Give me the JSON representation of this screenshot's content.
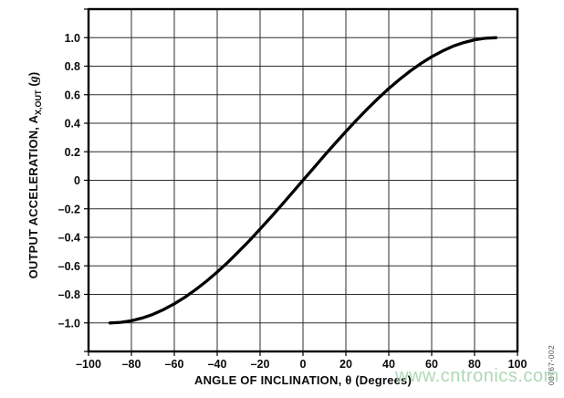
{
  "chart_data": {
    "type": "line",
    "title": "",
    "xlabel": "ANGLE OF INCLINATION, θ (Degrees)",
    "ylabel": "OUTPUT ACCELERATION, AX,OUT (g)",
    "ylabel_parts": {
      "prefix": "OUTPUT ACCELERATION, A",
      "sub": "X,OUT",
      "unit_open": " (",
      "unit_g": "g",
      "unit_close": ")"
    },
    "xlim": [
      -100,
      100
    ],
    "ylim": [
      -1.2,
      1.2
    ],
    "x_grid_step": 20,
    "y_grid_step": 0.2,
    "grid": true,
    "legend_position": "none",
    "x_ticks": [
      {
        "v": -100,
        "label": "–100"
      },
      {
        "v": -80,
        "label": "–80"
      },
      {
        "v": -60,
        "label": "–60"
      },
      {
        "v": -40,
        "label": "–40"
      },
      {
        "v": -20,
        "label": "–20"
      },
      {
        "v": 0,
        "label": "0"
      },
      {
        "v": 20,
        "label": "20"
      },
      {
        "v": 40,
        "label": "40"
      },
      {
        "v": 60,
        "label": "60"
      },
      {
        "v": 80,
        "label": "80"
      },
      {
        "v": 100,
        "label": "100"
      }
    ],
    "y_ticks": [
      {
        "v": 1.0,
        "label": "1.0"
      },
      {
        "v": 0.8,
        "label": "0.8"
      },
      {
        "v": 0.6,
        "label": "0.6"
      },
      {
        "v": 0.4,
        "label": "0.4"
      },
      {
        "v": 0.2,
        "label": "0.2"
      },
      {
        "v": 0,
        "label": "0"
      },
      {
        "v": -0.2,
        "label": "–0.2"
      },
      {
        "v": -0.4,
        "label": "–0.4"
      },
      {
        "v": -0.6,
        "label": "–0.6"
      },
      {
        "v": -0.8,
        "label": "–0.8"
      },
      {
        "v": -1.0,
        "label": "–1.0"
      }
    ],
    "series": [
      {
        "name": "output-acceleration-vs-angle",
        "x": [
          -90,
          -85,
          -80,
          -75,
          -70,
          -65,
          -60,
          -55,
          -50,
          -45,
          -40,
          -35,
          -30,
          -25,
          -20,
          -15,
          -10,
          -5,
          0,
          5,
          10,
          15,
          20,
          25,
          30,
          35,
          40,
          45,
          50,
          55,
          60,
          65,
          70,
          75,
          80,
          85,
          90
        ],
        "y": [
          -1.0,
          -0.996,
          -0.985,
          -0.966,
          -0.94,
          -0.906,
          -0.866,
          -0.819,
          -0.766,
          -0.707,
          -0.643,
          -0.574,
          -0.5,
          -0.423,
          -0.342,
          -0.259,
          -0.174,
          -0.087,
          0,
          0.087,
          0.174,
          0.259,
          0.342,
          0.423,
          0.5,
          0.574,
          0.643,
          0.707,
          0.766,
          0.819,
          0.866,
          0.906,
          0.94,
          0.966,
          0.985,
          0.996,
          1.0
        ],
        "color": "#000000",
        "stroke_width": 3.3
      }
    ],
    "colors": {
      "grid": "#2d2d2d",
      "border": "#000000",
      "tick": "#000000",
      "text": "#0a0a0a"
    }
  },
  "watermark": {
    "text": "www.cntronics.com",
    "color": "#9ccfa4"
  },
  "figure_code": {
    "text": "08767-002"
  }
}
